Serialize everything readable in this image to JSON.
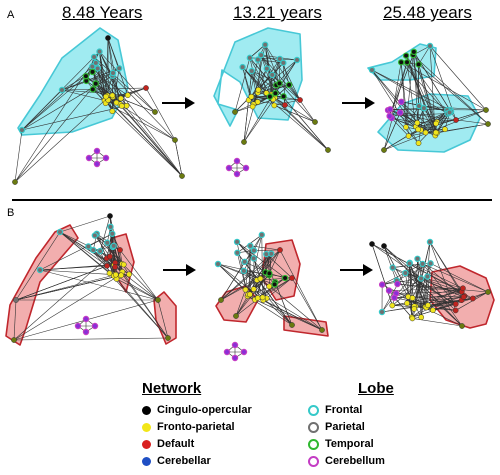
{
  "panels": {
    "a_label": "A",
    "b_label": "B"
  },
  "ages": [
    "8.48 Years",
    "13.21 years",
    "25.48 years"
  ],
  "legend": {
    "network_title": "Network",
    "network_items": [
      {
        "label": "Cingulo-opercular",
        "color": "#000000"
      },
      {
        "label": "Fronto-parietal",
        "color": "#f2e619"
      },
      {
        "label": "Default",
        "color": "#d92020"
      },
      {
        "label": "Cerebellar",
        "color": "#1f4fc4"
      }
    ],
    "lobe_title": "Lobe",
    "lobe_items": [
      {
        "label": "Frontal",
        "color": "#35c9c9"
      },
      {
        "label": "Parietal",
        "color": "#707070"
      },
      {
        "label": "Temporal",
        "color": "#2fb82f"
      },
      {
        "label": "Cerebellum",
        "color": "#c43cc4"
      }
    ]
  },
  "colors": {
    "frontal_fill": "#8fe8ee",
    "frontal_edge": "#47c8d6",
    "default_fill": "#f0a0a0",
    "default_edge": "#c0272d",
    "node_olive": "#6a7a10",
    "node_purple": "#8a2fd6",
    "node_red": "#c0241f",
    "node_yellow": "#f0e51c",
    "divider": "#000000"
  }
}
